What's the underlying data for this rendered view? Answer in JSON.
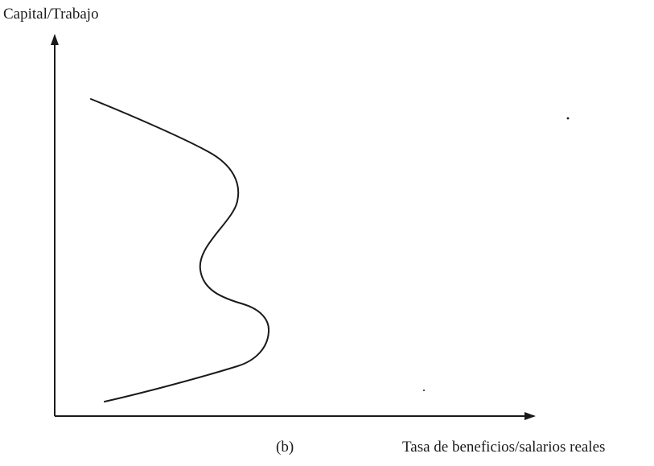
{
  "figure": {
    "y_axis_label": "Capital/Trabajo",
    "x_axis_label": "Tasa de beneficios/salarios reales",
    "panel_label": "(b)"
  },
  "style": {
    "ink": "#1a1a1a",
    "background": "#ffffff"
  }
}
